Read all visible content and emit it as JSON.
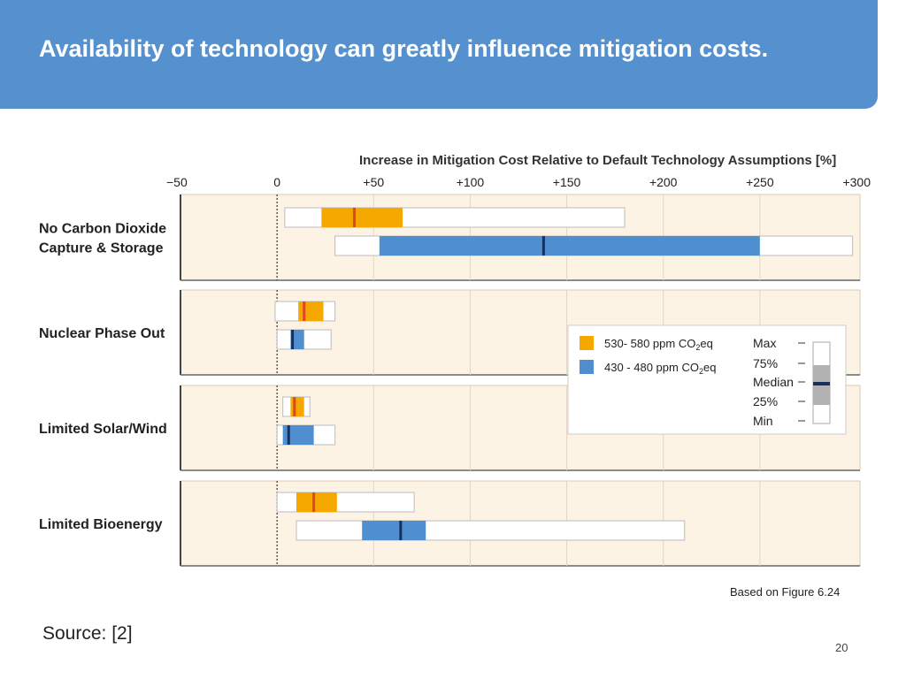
{
  "slide": {
    "title": "Availability of technology can greatly influence mitigation costs.",
    "footnote": "Based on Figure 6.24",
    "source": "Source:  [2]",
    "page_number": "20"
  },
  "chart_data": {
    "type": "box",
    "title": "Increase in Mitigation Cost Relative to Default Technology Assumptions [%]",
    "xlim": [
      -50,
      300
    ],
    "xticks": [
      -50,
      0,
      50,
      100,
      150,
      200,
      250,
      300
    ],
    "xtick_labels": [
      "−50",
      "0",
      "+50",
      "+100",
      "+150",
      "+200",
      "+250",
      "+300"
    ],
    "categories": [
      "No Carbon Dioxide\nCapture & Storage",
      "Nuclear Phase Out",
      "Limited Solar/Wind",
      "Limited Bioenergy"
    ],
    "series": [
      {
        "name": "530- 580  ppm CO2eq",
        "label_main": "530- 580  ppm CO",
        "label_sub": "2",
        "label_tail": "eq",
        "color": "#f5a800",
        "median_color": "#e0452a",
        "values": [
          {
            "min": 4,
            "q25": 23,
            "median": 40,
            "q75": 65,
            "max": 180
          },
          {
            "min": -1,
            "q25": 11,
            "median": 14,
            "q75": 24,
            "max": 30
          },
          {
            "min": 3,
            "q25": 7,
            "median": 9,
            "q75": 14,
            "max": 17
          },
          {
            "min": 0,
            "q25": 10,
            "median": 19,
            "q75": 31,
            "max": 71
          }
        ]
      },
      {
        "name": "430 - 480 ppm CO2eq",
        "label_main": "430 - 480 ppm CO",
        "label_sub": "2",
        "label_tail": "eq",
        "color": "#4f8fd0",
        "median_color": "#1a2f5a",
        "values": [
          {
            "min": 30,
            "q25": 53,
            "median": 138,
            "q75": 250,
            "max": 298
          },
          {
            "min": 0,
            "q25": 7,
            "median": 8,
            "q75": 14,
            "max": 28
          },
          {
            "min": 0,
            "q25": 3,
            "median": 6,
            "q75": 19,
            "max": 30
          },
          {
            "min": 10,
            "q25": 44,
            "median": 64,
            "q75": 77,
            "max": 211
          }
        ]
      }
    ],
    "legend": {
      "position": "right",
      "stats": [
        "Max",
        "75%",
        "Median",
        "25%",
        "Min"
      ]
    }
  }
}
